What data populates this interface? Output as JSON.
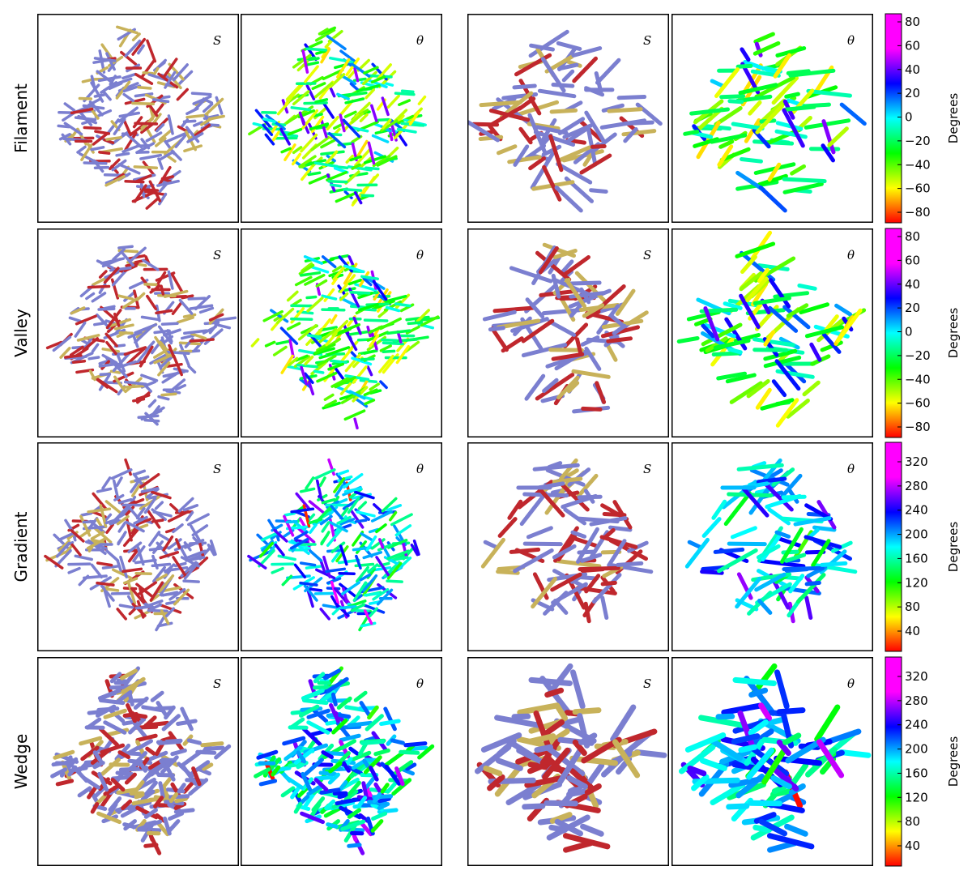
{
  "rows": [
    {
      "label": "Filament",
      "cb_ticks": [
        "80",
        "60",
        "40",
        "20",
        "0",
        "−20",
        "−40",
        "−60",
        "−80"
      ],
      "cb_label": "Degrees",
      "cb_type": "orientation"
    },
    {
      "label": "Valley",
      "cb_ticks": [
        "80",
        "60",
        "40",
        "20",
        "0",
        "−20",
        "−40",
        "−60",
        "−80"
      ],
      "cb_label": "Degrees",
      "cb_type": "orientation"
    },
    {
      "label": "Gradient",
      "cb_ticks": [
        "320",
        "280",
        "240",
        "200",
        "160",
        "120",
        "80",
        "40"
      ],
      "cb_label": "Degrees",
      "cb_type": "direction"
    },
    {
      "label": "Wedge",
      "cb_ticks": [
        "320",
        "280",
        "240",
        "200",
        "160",
        "120",
        "80",
        "40"
      ],
      "cb_label": "Degrees",
      "cb_type": "direction"
    }
  ],
  "panel_letters": [
    "S",
    "θ",
    "S",
    "θ"
  ],
  "colors": {
    "stroke_blue": "#7b7fd0",
    "stroke_red": "#c0272d",
    "stroke_yellow": "#c8b25a",
    "frame": "#000000"
  }
}
